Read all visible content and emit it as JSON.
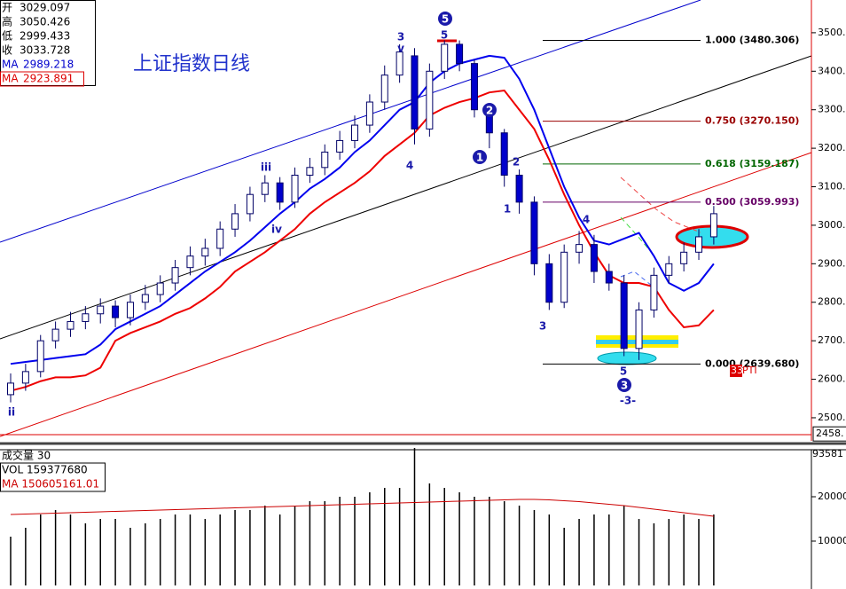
{
  "chart_data": {
    "type": "candlestick",
    "title": "上证指数日线",
    "info": [
      {
        "label": "开",
        "value": 3029.097
      },
      {
        "label": "高",
        "value": 3050.426
      },
      {
        "label": "低",
        "value": 2999.433
      },
      {
        "label": "收",
        "value": 3033.728
      }
    ],
    "ma_info": [
      {
        "name": "MA",
        "value": 2989.218,
        "color": "#0000cc"
      },
      {
        "name": "MA",
        "value": 2923.891,
        "color": "#dd0000"
      }
    ],
    "up_color": "#ffffff",
    "down_color": "#0000cc",
    "candle_stroke": "#000066",
    "open": [
      2560,
      2590,
      2620,
      2700,
      2730,
      2750,
      2770,
      2790,
      2760,
      2800,
      2820,
      2850,
      2890,
      2920,
      2940,
      2990,
      3030,
      3080,
      3110,
      3060,
      3130,
      3150,
      3190,
      3220,
      3260,
      3320,
      3390,
      3440,
      3250,
      3400,
      3470,
      3420,
      3300,
      3240,
      3130,
      3060,
      2900,
      2800,
      2930,
      2950,
      2880,
      2850,
      2680,
      2780,
      2870,
      2900,
      2930,
      2970
    ],
    "high": [
      2615,
      2640,
      2715,
      2750,
      2775,
      2790,
      2810,
      2805,
      2820,
      2845,
      2870,
      2910,
      2945,
      2965,
      3010,
      3055,
      3100,
      3130,
      3125,
      3150,
      3175,
      3210,
      3245,
      3285,
      3340,
      3415,
      3470,
      3460,
      3420,
      3480,
      3480,
      3430,
      3315,
      3250,
      3145,
      3075,
      2925,
      2950,
      2985,
      2975,
      2900,
      2870,
      2800,
      2890,
      2920,
      2955,
      2990,
      3050
    ],
    "low": [
      2540,
      2570,
      2605,
      2680,
      2710,
      2730,
      2745,
      2735,
      2740,
      2780,
      2800,
      2830,
      2870,
      2895,
      2920,
      2970,
      3010,
      3060,
      3040,
      3045,
      3110,
      3130,
      3170,
      3200,
      3240,
      3300,
      3370,
      3210,
      3230,
      3380,
      3400,
      3280,
      3200,
      3100,
      3030,
      2870,
      2780,
      2785,
      2900,
      2850,
      2830,
      2660,
      2650,
      2760,
      2850,
      2880,
      2910,
      2950
    ],
    "close": [
      2590,
      2620,
      2700,
      2730,
      2750,
      2770,
      2790,
      2760,
      2800,
      2820,
      2850,
      2890,
      2920,
      2940,
      2990,
      3030,
      3080,
      3110,
      3060,
      3130,
      3150,
      3190,
      3220,
      3260,
      3320,
      3390,
      3450,
      3250,
      3400,
      3470,
      3420,
      3300,
      3240,
      3130,
      3060,
      2900,
      2800,
      2930,
      2950,
      2880,
      2850,
      2680,
      2780,
      2870,
      2900,
      2930,
      2970,
      3030
    ],
    "ma1": {
      "color": "#0000ee",
      "values": [
        2640,
        2645,
        2650,
        2655,
        2660,
        2665,
        2690,
        2730,
        2750,
        2770,
        2790,
        2820,
        2850,
        2880,
        2905,
        2930,
        2960,
        2995,
        3030,
        3060,
        3095,
        3120,
        3150,
        3190,
        3220,
        3260,
        3300,
        3320,
        3370,
        3400,
        3420,
        3430,
        3440,
        3435,
        3380,
        3300,
        3200,
        3100,
        3020,
        2960,
        2950,
        2965,
        2980,
        2920,
        2850,
        2830,
        2850,
        2900
      ]
    },
    "ma2": {
      "color": "#ee0000",
      "values": [
        2570,
        2580,
        2595,
        2605,
        2605,
        2610,
        2630,
        2700,
        2720,
        2735,
        2750,
        2770,
        2785,
        2810,
        2840,
        2880,
        2905,
        2930,
        2960,
        2990,
        3030,
        3060,
        3085,
        3110,
        3140,
        3180,
        3210,
        3240,
        3285,
        3305,
        3320,
        3330,
        3345,
        3350,
        3300,
        3250,
        3170,
        3080,
        3000,
        2930,
        2870,
        2850,
        2850,
        2840,
        2780,
        2735,
        2740,
        2780
      ]
    },
    "ylim": [
      2440,
      3585
    ],
    "yticks": [
      {
        "value": 3500,
        "label": "3500."
      },
      {
        "value": 3400,
        "label": "3400."
      },
      {
        "value": 3300,
        "label": "3300."
      },
      {
        "value": 3200,
        "label": "3200."
      },
      {
        "value": 3100,
        "label": "3100."
      },
      {
        "value": 3000,
        "label": "3000."
      },
      {
        "value": 2900,
        "label": "2900."
      },
      {
        "value": 2800,
        "label": "2800."
      },
      {
        "value": 2700,
        "label": "2700."
      },
      {
        "value": 2600,
        "label": "2600."
      },
      {
        "value": 2500,
        "label": "2500."
      }
    ],
    "cursor": {
      "value": 2458,
      "label": "2458."
    },
    "fib": [
      {
        "value": 3480.306,
        "label": "1.000 (3480.306)",
        "color": "#000000"
      },
      {
        "value": 3270.15,
        "label": "0.750 (3270.150)",
        "color": "#990000"
      },
      {
        "value": 3159.187,
        "label": "0.618 (3159.187)",
        "color": "#006600"
      },
      {
        "value": 3059.993,
        "label": "0.500 (3059.993)",
        "color": "#660066"
      },
      {
        "value": 2639.68,
        "label": "0.000 (2639.680)",
        "color": "#000000"
      }
    ],
    "annotations": [
      "ii",
      "iii",
      "iv",
      "3",
      "v",
      "4",
      "5",
      "1",
      "2",
      "3",
      "4",
      "5",
      "-3-"
    ],
    "circled": [
      "5",
      "2",
      "1",
      "3"
    ],
    "pti": {
      "num": "33",
      "text": "PTI"
    },
    "volume": {
      "title": "成交量 30",
      "vol_label": "VOL 159377680",
      "ma_label": "MA  150605161.01",
      "corner_label": "93581",
      "color": "#000000",
      "ma_color": "#cc0000",
      "values": [
        11000,
        13000,
        16000,
        17000,
        16000,
        14000,
        15000,
        15000,
        13000,
        14000,
        15000,
        16000,
        16000,
        15000,
        16000,
        17000,
        17000,
        18000,
        16000,
        18000,
        19000,
        19000,
        20000,
        20000,
        21000,
        22000,
        22000,
        31000,
        23000,
        22000,
        21000,
        20000,
        20000,
        19000,
        18000,
        17000,
        16000,
        13000,
        15000,
        16000,
        16000,
        18000,
        15000,
        14000,
        15000,
        16000,
        15000,
        16000
      ],
      "ma": [
        16000,
        16100,
        16200,
        16300,
        16400,
        16500,
        16600,
        16700,
        16800,
        16900,
        17000,
        17100,
        17200,
        17300,
        17400,
        17500,
        17600,
        17700,
        17800,
        17900,
        18000,
        18100,
        18200,
        18300,
        18400,
        18500,
        18600,
        18700,
        18800,
        18900,
        19000,
        19100,
        19200,
        19300,
        19400,
        19400,
        19300,
        19100,
        18900,
        18600,
        18300,
        18000,
        17600,
        17200,
        16800,
        16400,
        16000,
        15600
      ],
      "ylim": [
        0,
        32000
      ],
      "yticks": [
        20000,
        10000
      ]
    }
  }
}
